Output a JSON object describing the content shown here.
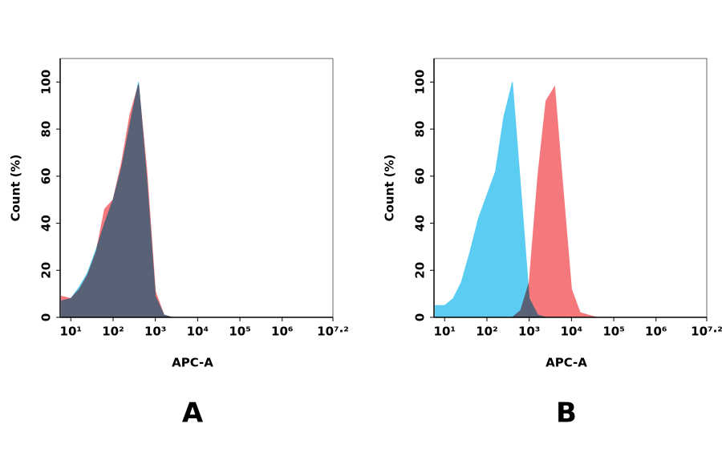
{
  "chart_data": [
    {
      "type": "area",
      "title": "A",
      "xlabel": "APC-A",
      "ylabel": "Count  (%)",
      "log_x": true,
      "x": [
        6,
        10,
        16,
        25,
        40,
        63,
        100,
        160,
        250,
        400,
        630,
        1000,
        1600,
        2500,
        4000,
        6300,
        10000,
        16000,
        25000,
        40000,
        63000,
        100000
      ],
      "series": [
        {
          "color": "#f5787c",
          "values": [
            9,
            8,
            12,
            18,
            28,
            46,
            50,
            66,
            86,
            99,
            62,
            11,
            1,
            0,
            0,
            0,
            0,
            0,
            0,
            0,
            0,
            0
          ]
        },
        {
          "color": "#5ccdf2",
          "values": [
            7,
            8,
            13,
            19,
            29,
            40,
            50,
            64,
            82,
            100,
            58,
            9,
            1,
            0,
            0,
            0,
            0,
            0,
            0,
            0,
            0,
            0
          ]
        }
      ],
      "xlim": [
        5.6,
        15848932
      ],
      "ylim": [
        0,
        110
      ],
      "xticks": [
        {
          "value": 10,
          "label": "10¹"
        },
        {
          "value": 100,
          "label": "10²"
        },
        {
          "value": 1000,
          "label": "10³"
        },
        {
          "value": 10000,
          "label": "10⁴"
        },
        {
          "value": 100000,
          "label": "10⁵"
        },
        {
          "value": 1000000,
          "label": "10⁶"
        },
        {
          "value": 15848932,
          "label": "10⁷·²"
        }
      ],
      "yticks": [
        0,
        20,
        40,
        60,
        80,
        100
      ]
    },
    {
      "type": "area",
      "title": "B",
      "xlabel": "APC-A",
      "ylabel": "Count  (%)",
      "log_x": true,
      "x": [
        6,
        10,
        16,
        25,
        40,
        63,
        100,
        160,
        250,
        400,
        630,
        1000,
        1600,
        2500,
        4000,
        6300,
        10000,
        16000,
        25000,
        40000,
        63000,
        100000
      ],
      "series": [
        {
          "color": "#f5787c",
          "values": [
            0,
            0,
            0,
            0,
            0,
            0,
            0,
            0,
            0,
            0,
            3,
            15,
            60,
            92,
            98,
            55,
            12,
            2,
            1,
            0,
            0,
            0
          ]
        },
        {
          "color": "#5ccdf2",
          "values": [
            5,
            5,
            8,
            15,
            28,
            42,
            52,
            62,
            85,
            100,
            55,
            8,
            1,
            0,
            0,
            0,
            0,
            0,
            0,
            0,
            0,
            0
          ]
        }
      ],
      "xlim": [
        5.6,
        15848932
      ],
      "ylim": [
        0,
        110
      ],
      "xticks": [
        {
          "value": 10,
          "label": "10¹"
        },
        {
          "value": 100,
          "label": "10²"
        },
        {
          "value": 1000,
          "label": "10³"
        },
        {
          "value": 10000,
          "label": "10⁴"
        },
        {
          "value": 100000,
          "label": "10⁵"
        },
        {
          "value": 1000000,
          "label": "10⁶"
        },
        {
          "value": 15848932,
          "label": "10⁷·²"
        }
      ],
      "yticks": [
        0,
        20,
        40,
        60,
        80,
        100
      ]
    }
  ]
}
